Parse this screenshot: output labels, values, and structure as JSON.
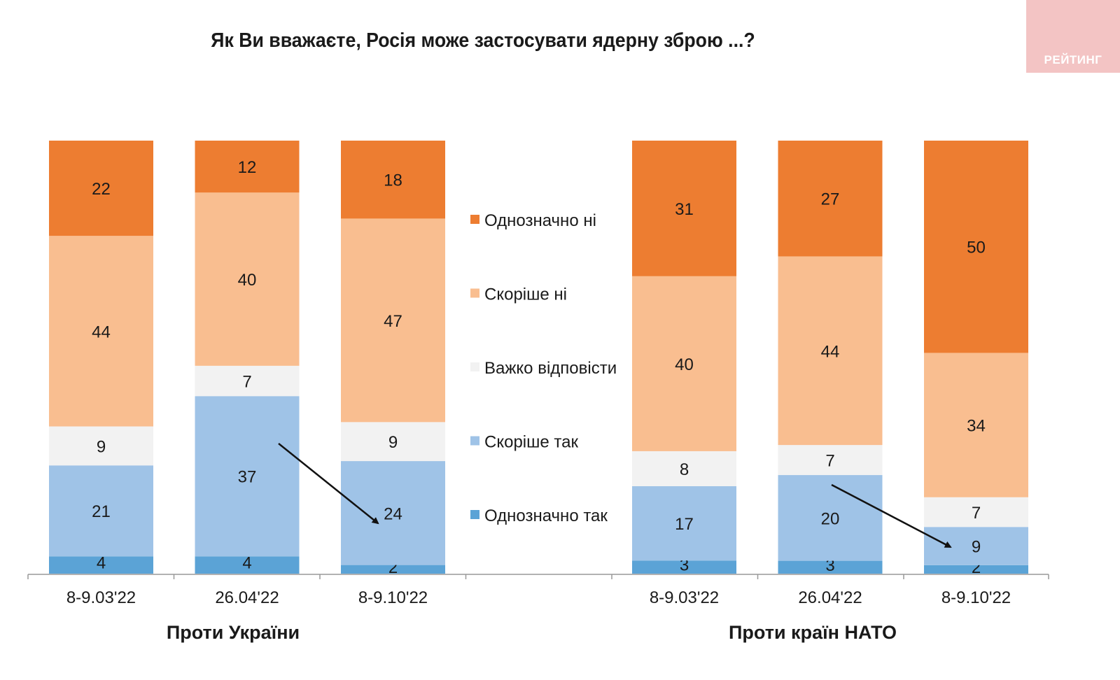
{
  "title": "Як Ви вважаєте, Росія може застосувати ядерну зброю ...?",
  "logo": {
    "text": "РЕЙТИНГ",
    "color": "#f3c4c4"
  },
  "chart_data": {
    "type": "bar",
    "stacked": true,
    "title": "Як Ви вважаєте, Росія може застосувати ядерну зброю ...?",
    "xlabel": "",
    "ylabel": "",
    "ylim": [
      0,
      100
    ],
    "grid": false,
    "legend_placement": "center",
    "series": [
      {
        "name": "Однозначно так",
        "color": "#5ba3d6"
      },
      {
        "name": "Скоріше так",
        "color": "#9fc3e7"
      },
      {
        "name": "Важко відповісти",
        "color": "#f2f2f2"
      },
      {
        "name": "Скоріше ні",
        "color": "#f9be90"
      },
      {
        "name": "Однозначно ні",
        "color": "#ed7d31"
      }
    ],
    "legend_order": [
      "Однозначно ні",
      "Скоріше ні",
      "Важко відповісти",
      "Скоріше так",
      "Однозначно так"
    ],
    "groups": [
      {
        "label": "Проти України",
        "categories": [
          "8-9.03'22",
          "26.04'22",
          "8-9.10'22"
        ],
        "values": [
          [
            4,
            21,
            9,
            44,
            22
          ],
          [
            4,
            37,
            7,
            40,
            12
          ],
          [
            2,
            24,
            9,
            47,
            18
          ]
        ]
      },
      {
        "label": "Проти країн НАТО",
        "categories": [
          "8-9.03'22",
          "26.04'22",
          "8-9.10'22"
        ],
        "values": [
          [
            3,
            17,
            8,
            40,
            31
          ],
          [
            3,
            20,
            7,
            44,
            27
          ],
          [
            2,
            9,
            7,
            34,
            50
          ]
        ]
      }
    ],
    "annotations": [
      {
        "type": "arrow",
        "group": "Проти України",
        "from": "26.04'22",
        "to": "8-9.10'22",
        "series": "Скоріше так"
      },
      {
        "type": "arrow",
        "group": "Проти країн НАТО",
        "from": "26.04'22",
        "to": "8-9.10'22",
        "series": "Скоріше так"
      }
    ]
  }
}
